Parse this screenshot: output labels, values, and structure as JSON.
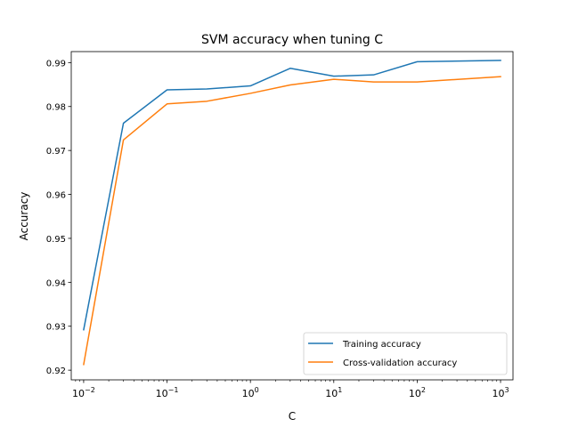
{
  "chart_data": {
    "type": "line",
    "title": "SVM accuracy when tuning C",
    "xlabel": "C",
    "ylabel": "Accuracy",
    "xscale": "log",
    "xlim": [
      0.0071,
      1410
    ],
    "ylim": [
      0.9178,
      0.9925
    ],
    "x": [
      0.01,
      0.03,
      0.1,
      0.3,
      1,
      3,
      10,
      30,
      100,
      1000
    ],
    "x_ticks": [
      {
        "value": 0.01,
        "base": "10",
        "exp": "−2"
      },
      {
        "value": 0.1,
        "base": "10",
        "exp": "−1"
      },
      {
        "value": 1,
        "base": "10",
        "exp": "0"
      },
      {
        "value": 10,
        "base": "10",
        "exp": "1"
      },
      {
        "value": 100,
        "base": "10",
        "exp": "2"
      },
      {
        "value": 1000,
        "base": "10",
        "exp": "3"
      }
    ],
    "y_ticks": [
      0.92,
      0.93,
      0.94,
      0.95,
      0.96,
      0.97,
      0.98,
      0.99
    ],
    "y_tick_labels": [
      "0.92",
      "0.93",
      "0.94",
      "0.95",
      "0.96",
      "0.97",
      "0.98",
      "0.99"
    ],
    "series": [
      {
        "name": "Training accuracy",
        "color": "#1f77b4",
        "values": [
          0.9292,
          0.9762,
          0.9838,
          0.984,
          0.9847,
          0.9887,
          0.9869,
          0.9872,
          0.9902,
          0.9905
        ]
      },
      {
        "name": "Cross-validation accuracy",
        "color": "#ff7f0e",
        "values": [
          0.9213,
          0.9724,
          0.9806,
          0.9812,
          0.983,
          0.9849,
          0.9862,
          0.9856,
          0.9856,
          0.9868
        ]
      }
    ],
    "grid": false,
    "legend_position": "bottom-right"
  }
}
